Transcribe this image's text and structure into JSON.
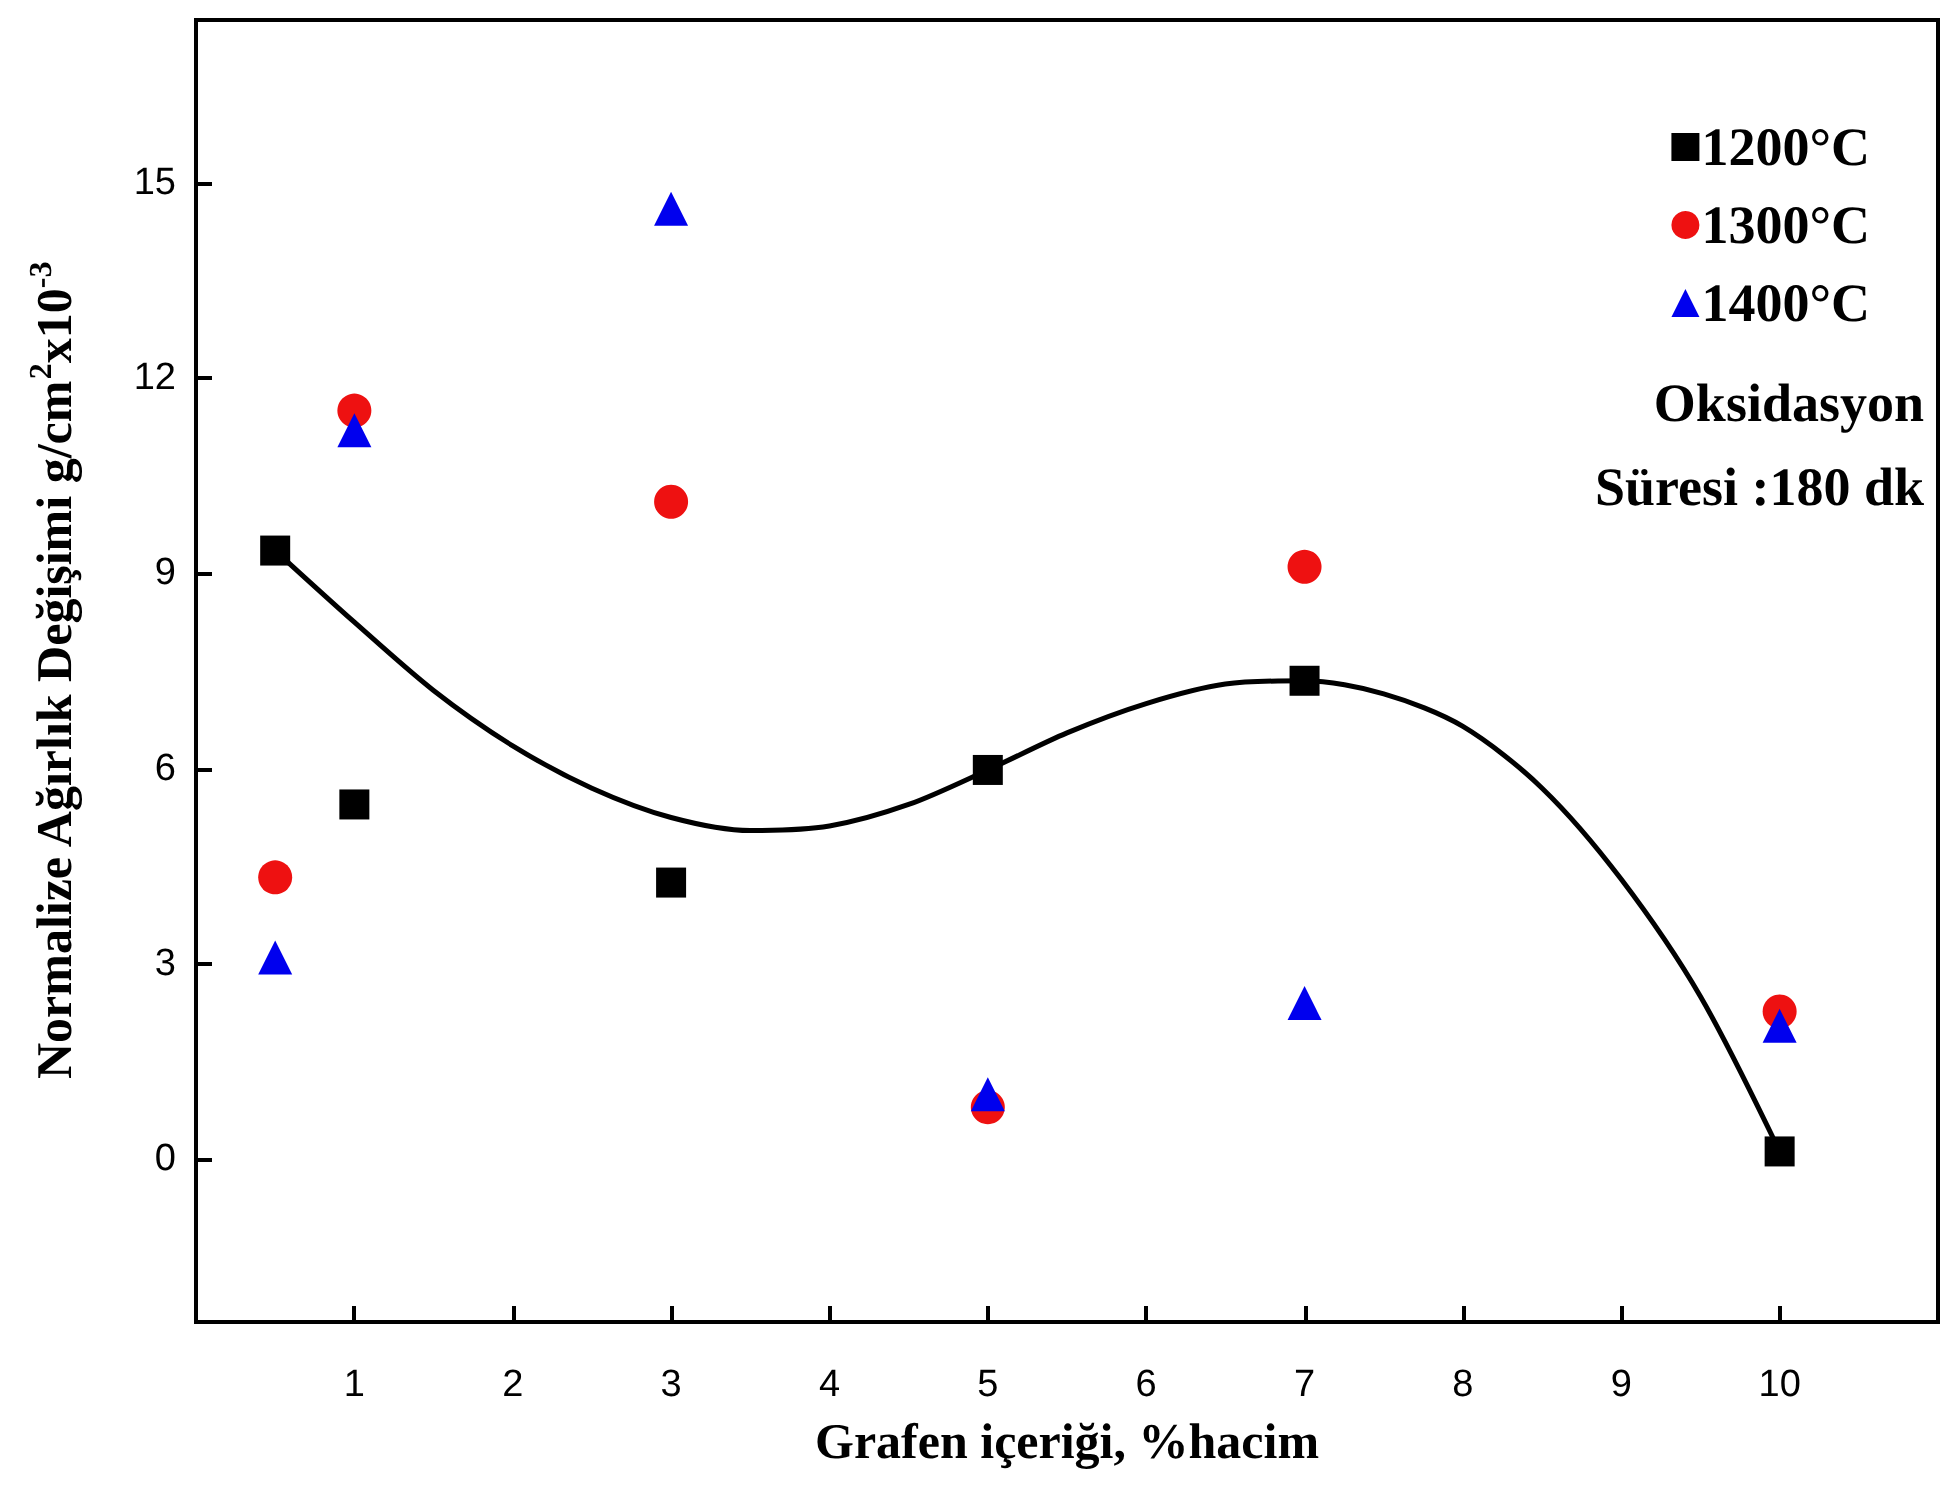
{
  "chart_data": {
    "type": "scatter",
    "xlabel": "Grafen içeriği, %hacim",
    "ylabel": "Normalize Ağırlık Değişimi g/cm$^{2}$x10$^{-3}$",
    "x": [
      0.5,
      1,
      3,
      5,
      7,
      10
    ],
    "series": [
      {
        "name": "1200°C",
        "color": "#000000",
        "marker": "square",
        "values": [
          9.35,
          5.45,
          4.25,
          5.98,
          7.35,
          0.12
        ]
      },
      {
        "name": "1300°C",
        "color": "#ee1111",
        "marker": "circle",
        "values": [
          4.33,
          11.5,
          10.1,
          0.8,
          9.1,
          2.27
        ]
      },
      {
        "name": "1400°C",
        "color": "#0000ee",
        "marker": "triangle",
        "values": [
          3.1,
          11.2,
          14.6,
          1.0,
          2.4,
          2.05
        ]
      },
      {
        "type": "line",
        "color": "#000000",
        "marker": "none",
        "line_style": "solid",
        "x": [
          0.5,
          1,
          1.5,
          2,
          2.5,
          3,
          3.5,
          4,
          4.5,
          5,
          5.5,
          6,
          6.5,
          7,
          7.5,
          8,
          8.5,
          9,
          9.5,
          10
        ],
        "values": [
          9.35,
          8.25,
          7.2,
          6.35,
          5.7,
          5.25,
          5.05,
          5.12,
          5.45,
          5.98,
          6.55,
          7.0,
          7.3,
          7.35,
          7.15,
          6.65,
          5.7,
          4.3,
          2.5,
          0.12
        ]
      }
    ],
    "annotations": [
      "Oksidasyon",
      "Süresi :180 dk"
    ],
    "xlim": [
      0,
      11
    ],
    "xticks": [
      1,
      2,
      3,
      4,
      5,
      6,
      7,
      8,
      9,
      10
    ],
    "ylim": [
      -2.5,
      17.5
    ],
    "yticks": [
      0,
      3,
      6,
      9,
      12,
      15
    ],
    "grid": false,
    "legend": "top right"
  }
}
